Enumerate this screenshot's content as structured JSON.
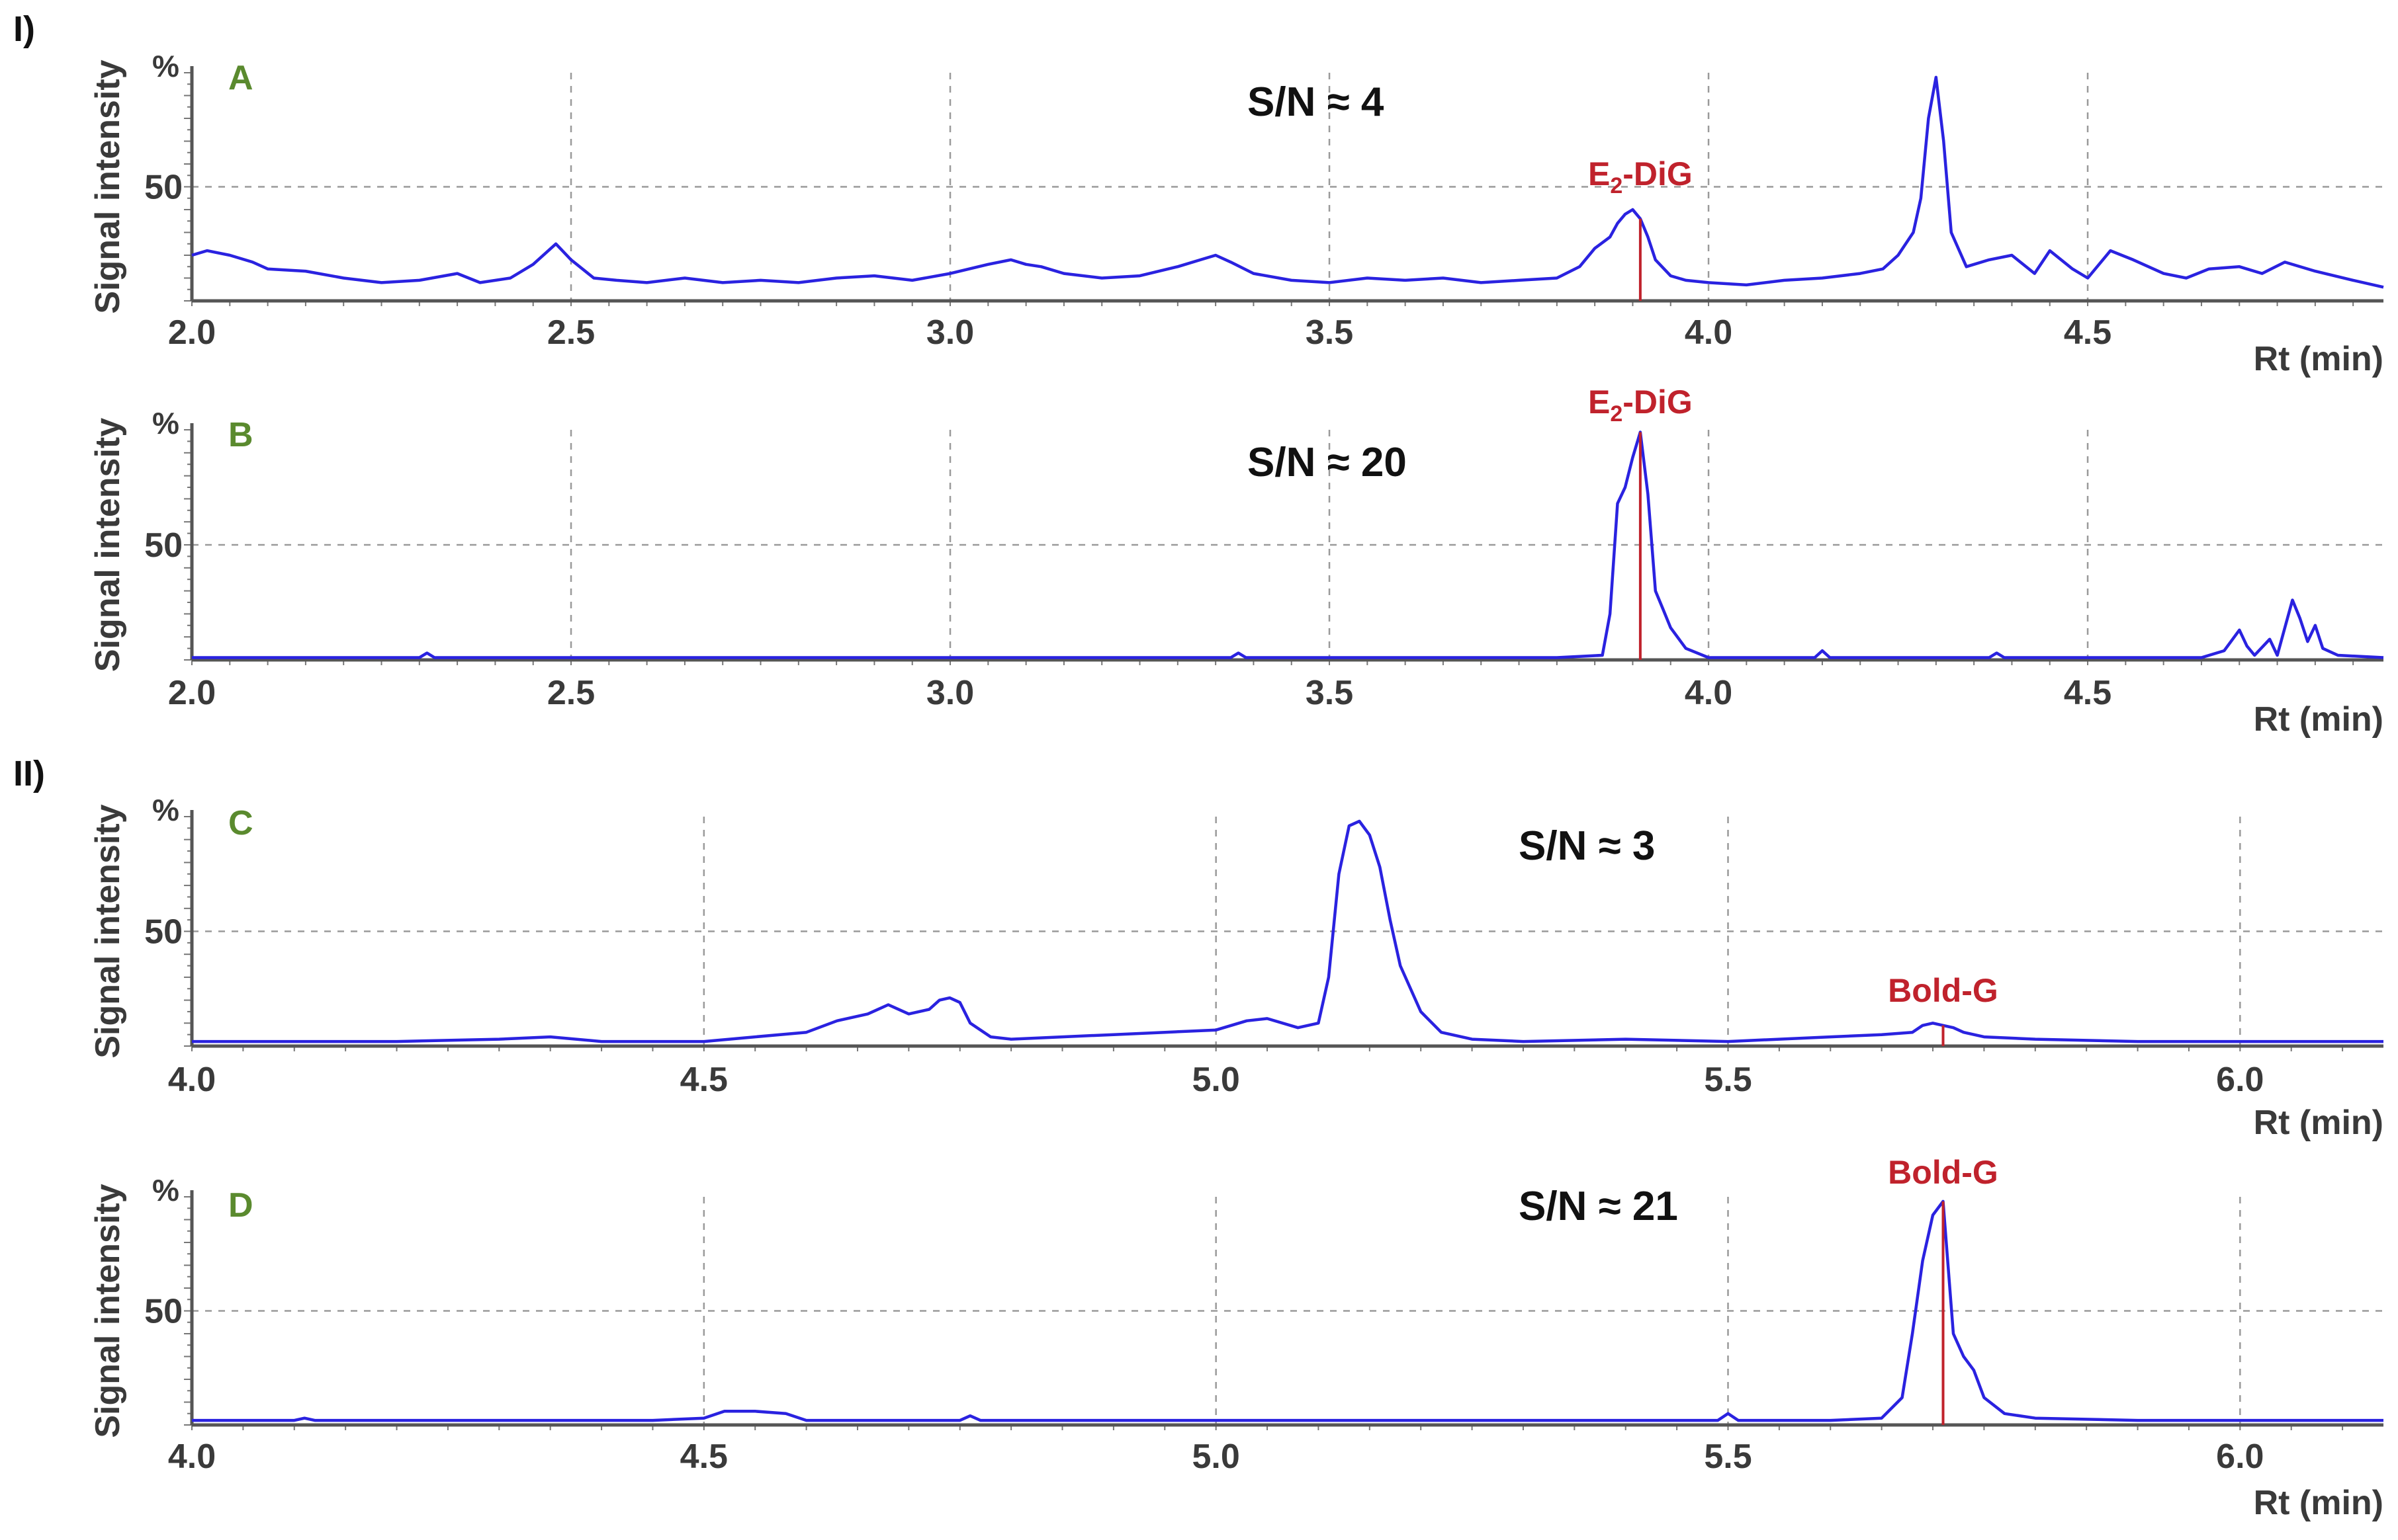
{
  "sections": [
    {
      "label": "I)"
    },
    {
      "label": "II)"
    }
  ],
  "colors": {
    "trace": "#2a22e0",
    "peak_marker": "#c0222c",
    "panel_letter": "#5a8a2e"
  },
  "chart_data": [
    {
      "type": "line",
      "panel": "A",
      "annotation": "S/N ≈ 4",
      "peak_label": {
        "prefix": "E",
        "sub": "2",
        "suffix": "-DiG",
        "x": 3.91
      },
      "xlabel": "Rt (min)",
      "ylabel": "Signal intensity",
      "yunit": "%",
      "xlim": [
        2.0,
        4.89
      ],
      "ylim": [
        0,
        100
      ],
      "xticks": [
        "2.0",
        "2.5",
        "3.0",
        "3.5",
        "4.0",
        "4.5"
      ],
      "yticks": [
        "50"
      ],
      "grid": true,
      "series": [
        {
          "x": [
            2.0,
            2.02,
            2.05,
            2.08,
            2.1,
            2.15,
            2.2,
            2.25,
            2.3,
            2.35,
            2.38,
            2.42,
            2.45,
            2.48,
            2.5,
            2.53,
            2.56,
            2.6,
            2.65,
            2.7,
            2.75,
            2.8,
            2.85,
            2.9,
            2.95,
            3.0,
            3.05,
            3.08,
            3.1,
            3.12,
            3.15,
            3.2,
            3.25,
            3.3,
            3.33,
            3.35,
            3.37,
            3.4,
            3.45,
            3.5,
            3.55,
            3.6,
            3.65,
            3.7,
            3.75,
            3.8,
            3.83,
            3.85,
            3.87,
            3.88,
            3.89,
            3.9,
            3.91,
            3.92,
            3.93,
            3.95,
            3.97,
            4.0,
            4.05,
            4.1,
            4.15,
            4.2,
            4.23,
            4.25,
            4.27,
            4.28,
            4.29,
            4.3,
            4.31,
            4.32,
            4.34,
            4.37,
            4.4,
            4.43,
            4.45,
            4.48,
            4.5,
            4.53,
            4.56,
            4.6,
            4.63,
            4.66,
            4.7,
            4.73,
            4.76,
            4.8,
            4.85,
            4.89
          ],
          "y": [
            20,
            22,
            20,
            17,
            14,
            13,
            10,
            8,
            9,
            12,
            8,
            10,
            16,
            25,
            18,
            10,
            9,
            8,
            10,
            8,
            9,
            8,
            10,
            11,
            9,
            12,
            16,
            18,
            16,
            15,
            12,
            10,
            11,
            15,
            18,
            20,
            17,
            12,
            9,
            8,
            10,
            9,
            10,
            8,
            9,
            10,
            15,
            23,
            28,
            34,
            38,
            40,
            36,
            28,
            18,
            11,
            9,
            8,
            7,
            9,
            10,
            12,
            14,
            20,
            30,
            45,
            80,
            98,
            70,
            30,
            15,
            18,
            20,
            12,
            22,
            14,
            10,
            22,
            18,
            12,
            10,
            14,
            15,
            12,
            17,
            13,
            9,
            6
          ]
        }
      ]
    },
    {
      "type": "line",
      "panel": "B",
      "annotation": "S/N ≈ 20",
      "peak_label": {
        "prefix": "E",
        "sub": "2",
        "suffix": "-DiG",
        "x": 3.91
      },
      "xlabel": "Rt (min)",
      "ylabel": "Signal intensity",
      "yunit": "%",
      "xlim": [
        2.0,
        4.89
      ],
      "ylim": [
        0,
        100
      ],
      "xticks": [
        "2.0",
        "2.5",
        "3.0",
        "3.5",
        "4.0",
        "4.5"
      ],
      "yticks": [
        "50"
      ],
      "grid": true,
      "series": [
        {
          "x": [
            2.0,
            2.3,
            2.31,
            2.32,
            2.6,
            3.37,
            3.38,
            3.39,
            3.8,
            3.86,
            3.87,
            3.88,
            3.89,
            3.9,
            3.91,
            3.92,
            3.93,
            3.94,
            3.95,
            3.97,
            4.0,
            4.14,
            4.15,
            4.16,
            4.37,
            4.38,
            4.39,
            4.65,
            4.68,
            4.7,
            4.71,
            4.72,
            4.74,
            4.75,
            4.76,
            4.77,
            4.78,
            4.79,
            4.8,
            4.81,
            4.83,
            4.89
          ],
          "y": [
            1,
            1,
            3,
            1,
            1,
            1,
            3,
            1,
            1,
            2,
            20,
            68,
            75,
            88,
            99,
            72,
            30,
            22,
            14,
            5,
            1,
            1,
            4,
            1,
            1,
            3,
            1,
            1,
            4,
            13,
            6,
            2,
            9,
            2,
            14,
            26,
            18,
            8,
            15,
            5,
            2,
            1
          ]
        }
      ]
    },
    {
      "type": "line",
      "panel": "C",
      "annotation": "S/N ≈ 3",
      "peak_label": {
        "text": "Bold-G",
        "x": 5.71
      },
      "xlabel": "Rt (min)",
      "ylabel": "Signal intensity",
      "yunit": "%",
      "xlim": [
        4.0,
        6.14
      ],
      "ylim": [
        0,
        100
      ],
      "xticks": [
        "4.0",
        "4.5",
        "5.0",
        "5.5",
        "6.0"
      ],
      "yticks": [
        "50"
      ],
      "grid": true,
      "series": [
        {
          "x": [
            4.0,
            4.2,
            4.3,
            4.35,
            4.4,
            4.5,
            4.55,
            4.6,
            4.63,
            4.66,
            4.68,
            4.7,
            4.72,
            4.73,
            4.74,
            4.75,
            4.76,
            4.78,
            4.8,
            4.85,
            4.9,
            4.95,
            5.0,
            5.03,
            5.05,
            5.08,
            5.1,
            5.11,
            5.12,
            5.13,
            5.14,
            5.15,
            5.16,
            5.17,
            5.18,
            5.2,
            5.22,
            5.25,
            5.3,
            5.4,
            5.5,
            5.6,
            5.65,
            5.68,
            5.69,
            5.7,
            5.71,
            5.72,
            5.73,
            5.75,
            5.8,
            5.9,
            6.0,
            6.14
          ],
          "y": [
            2,
            2,
            3,
            4,
            2,
            2,
            4,
            6,
            11,
            14,
            18,
            14,
            16,
            20,
            21,
            19,
            10,
            4,
            3,
            4,
            5,
            6,
            7,
            11,
            12,
            8,
            10,
            30,
            75,
            96,
            98,
            92,
            78,
            55,
            35,
            15,
            6,
            3,
            2,
            3,
            2,
            4,
            5,
            6,
            9,
            10,
            9,
            8,
            6,
            4,
            3,
            2,
            2,
            2
          ]
        }
      ]
    },
    {
      "type": "line",
      "panel": "D",
      "annotation": "S/N ≈ 21",
      "peak_label": {
        "text": "Bold-G",
        "x": 5.71
      },
      "xlabel": "Rt (min)",
      "ylabel": "Signal intensity",
      "yunit": "%",
      "xlim": [
        4.0,
        6.14
      ],
      "ylim": [
        0,
        100
      ],
      "xticks": [
        "4.0",
        "4.5",
        "5.0",
        "5.5",
        "6.0"
      ],
      "yticks": [
        "50"
      ],
      "grid": true,
      "series": [
        {
          "x": [
            4.0,
            4.1,
            4.11,
            4.12,
            4.45,
            4.5,
            4.52,
            4.55,
            4.58,
            4.6,
            4.75,
            4.76,
            4.77,
            5.0,
            5.49,
            5.5,
            5.51,
            5.6,
            5.65,
            5.67,
            5.68,
            5.69,
            5.7,
            5.71,
            5.72,
            5.73,
            5.74,
            5.75,
            5.77,
            5.8,
            5.9,
            6.0,
            6.14
          ],
          "y": [
            2,
            2,
            3,
            2,
            2,
            3,
            6,
            6,
            5,
            2,
            2,
            4,
            2,
            2,
            2,
            5,
            2,
            2,
            3,
            12,
            40,
            72,
            92,
            98,
            40,
            30,
            24,
            12,
            5,
            3,
            2,
            2,
            2
          ]
        }
      ]
    }
  ]
}
